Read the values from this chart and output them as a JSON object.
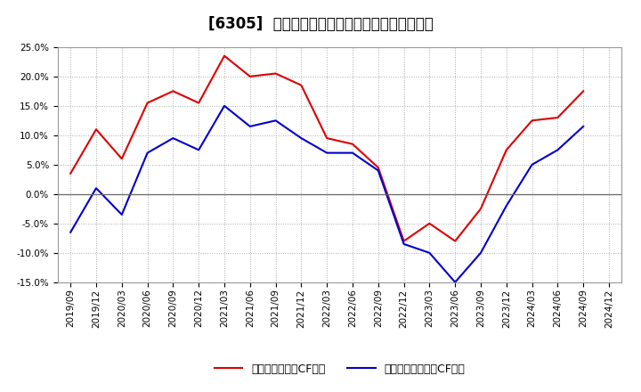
{
  "title": "[6305]  有利子負債キャッシュフロー比率の推移",
  "x_labels": [
    "2019/09",
    "2019/12",
    "2020/03",
    "2020/06",
    "2020/09",
    "2020/12",
    "2021/03",
    "2021/06",
    "2021/09",
    "2021/12",
    "2022/03",
    "2022/06",
    "2022/09",
    "2022/12",
    "2023/03",
    "2023/06",
    "2023/09",
    "2023/12",
    "2024/03",
    "2024/06",
    "2024/09",
    "2024/12"
  ],
  "red_series": [
    3.5,
    11.0,
    6.0,
    15.5,
    17.5,
    15.5,
    23.5,
    20.0,
    20.5,
    18.5,
    9.5,
    8.5,
    4.5,
    -8.0,
    -5.0,
    -8.0,
    -2.5,
    7.5,
    12.5,
    13.0,
    17.5,
    null
  ],
  "blue_series": [
    -6.5,
    1.0,
    -3.5,
    7.0,
    9.5,
    7.5,
    15.0,
    11.5,
    12.5,
    9.5,
    7.0,
    7.0,
    4.0,
    -8.5,
    -10.0,
    -15.0,
    -10.0,
    -2.0,
    5.0,
    7.5,
    11.5,
    null
  ],
  "red_color": "#dd0000",
  "blue_color": "#0000cc",
  "legend_red": "有利子負債営業CF比率",
  "legend_blue": "有利子負債フリーCF比率",
  "ylim": [
    -15.0,
    25.0
  ],
  "yticks": [
    -15.0,
    -10.0,
    -5.0,
    0.0,
    5.0,
    10.0,
    15.0,
    20.0,
    25.0
  ],
  "background_color": "#ffffff",
  "grid_color": "#aaaaaa",
  "title_fontsize": 12,
  "axis_fontsize": 7.5,
  "legend_fontsize": 9
}
